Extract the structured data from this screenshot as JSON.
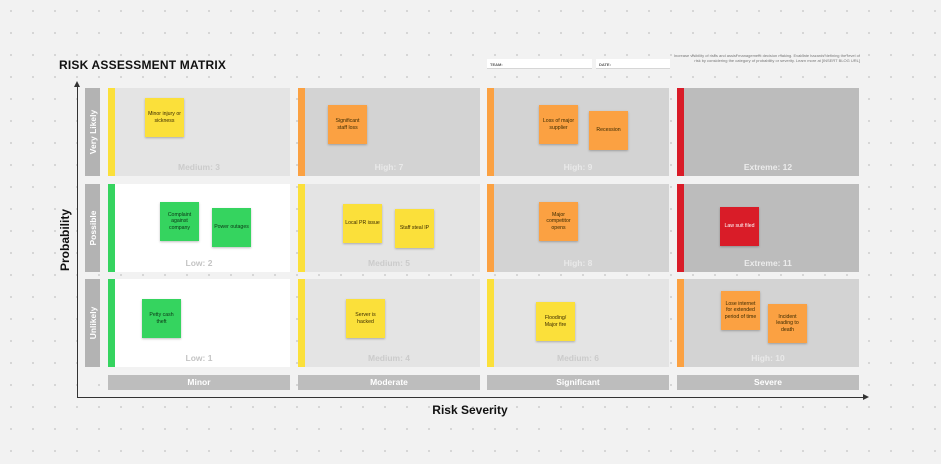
{
  "title": "RISK ASSESSMENT MATRIX",
  "fields": {
    "team_label": "TEAM:",
    "date_label": "DATE:"
  },
  "description": "Increase visibility of risks and assist management decision making. Evaluate hazards defining the level of risk by considering the category of probability or severity. Learn more at [INSERT BLOG URL]",
  "axes": {
    "y_label": "Probability",
    "x_label": "Risk Severity"
  },
  "rows": [
    "Very Likely",
    "Possible",
    "Unlikely"
  ],
  "columns": [
    "Minor",
    "Moderate",
    "Significant",
    "Severe"
  ],
  "colors": {
    "green": "#35d45f",
    "yellow": "#fbe03a",
    "orange": "#fba142",
    "red": "#d91c28"
  },
  "cells": [
    {
      "score": "Medium: 3",
      "level": "medium",
      "bar": "yellow",
      "notes": [
        {
          "text": "Minor injury or sickness",
          "color": "yellow"
        }
      ]
    },
    {
      "score": "High: 7",
      "level": "high",
      "bar": "orange",
      "notes": [
        {
          "text": "Significant staff loss",
          "color": "orange"
        }
      ]
    },
    {
      "score": "High: 9",
      "level": "high",
      "bar": "orange",
      "notes": [
        {
          "text": "Loss of major supplier",
          "color": "orange"
        },
        {
          "text": "Recession",
          "color": "orange"
        }
      ]
    },
    {
      "score": "Extreme: 12",
      "level": "extreme",
      "bar": "red",
      "notes": []
    },
    {
      "score": "Low: 2",
      "level": "low",
      "bar": "green",
      "notes": [
        {
          "text": "Complaint against company",
          "color": "green"
        },
        {
          "text": "Power outages",
          "color": "green"
        }
      ]
    },
    {
      "score": "Medium: 5",
      "level": "medium",
      "bar": "yellow",
      "notes": [
        {
          "text": "Local PR issue",
          "color": "yellow"
        },
        {
          "text": "Staff steal IP",
          "color": "yellow"
        }
      ]
    },
    {
      "score": "High: 8",
      "level": "high",
      "bar": "orange",
      "notes": [
        {
          "text": "Major competitor opens",
          "color": "orange"
        }
      ]
    },
    {
      "score": "Extreme: 11",
      "level": "extreme",
      "bar": "red",
      "notes": [
        {
          "text": "Law suit filed",
          "color": "red"
        }
      ]
    },
    {
      "score": "Low: 1",
      "level": "low",
      "bar": "green",
      "notes": [
        {
          "text": "Petty cash theft",
          "color": "green"
        }
      ]
    },
    {
      "score": "Medium: 4",
      "level": "medium",
      "bar": "yellow",
      "notes": [
        {
          "text": "Server is hacked",
          "color": "yellow"
        }
      ]
    },
    {
      "score": "Medium: 6",
      "level": "medium",
      "bar": "yellow",
      "notes": [
        {
          "text": "Flooding/ Major fire",
          "color": "yellow"
        }
      ]
    },
    {
      "score": "High: 10",
      "level": "high",
      "bar": "orange",
      "notes": [
        {
          "text": "Lose internet for extended period of time",
          "color": "orange"
        },
        {
          "text": "Incident leading to death",
          "color": "orange"
        }
      ]
    }
  ]
}
